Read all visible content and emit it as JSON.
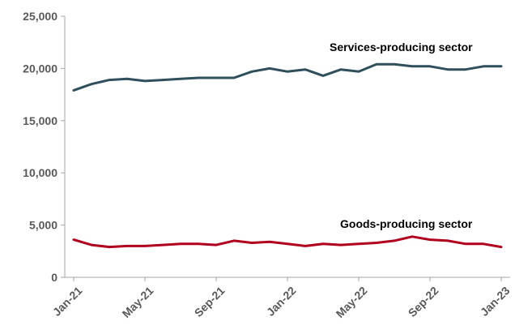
{
  "chart_data": {
    "type": "line",
    "ylim": [
      0,
      25000
    ],
    "yticks": [
      0,
      5000,
      10000,
      15000,
      20000,
      25000
    ],
    "ytick_labels": [
      "0",
      "5,000",
      "10,000",
      "15,000",
      "20,000",
      "25,000"
    ],
    "x": [
      "Jan-21",
      "Feb-21",
      "Mar-21",
      "Apr-21",
      "May-21",
      "Jun-21",
      "Jul-21",
      "Aug-21",
      "Sep-21",
      "Oct-21",
      "Nov-21",
      "Dec-21",
      "Jan-22",
      "Feb-22",
      "Mar-22",
      "Apr-22",
      "May-22",
      "Jun-22",
      "Jul-22",
      "Aug-22",
      "Sep-22",
      "Oct-22",
      "Nov-22",
      "Dec-22",
      "Jan-23"
    ],
    "xtick_labels": [
      "Jan-21",
      "May-21",
      "Sep-21",
      "Jan-22",
      "May-22",
      "Sep-22",
      "Jan-23"
    ],
    "grid": false,
    "series": [
      {
        "name": "Services-producing sector",
        "color": "#2f4f5c",
        "values": [
          17900,
          18500,
          18900,
          19000,
          18800,
          18900,
          19000,
          19100,
          19100,
          19100,
          19700,
          20000,
          19700,
          19900,
          19300,
          19900,
          19700,
          20400,
          20400,
          20200,
          20200,
          19900,
          19900,
          20200,
          20200
        ]
      },
      {
        "name": "Goods-producing sector",
        "color": "#b0001e",
        "values": [
          3600,
          3100,
          2900,
          3000,
          3000,
          3100,
          3200,
          3200,
          3100,
          3500,
          3300,
          3400,
          3200,
          3000,
          3200,
          3100,
          3200,
          3300,
          3500,
          3900,
          3600,
          3500,
          3200,
          3200,
          2900
        ]
      }
    ]
  }
}
